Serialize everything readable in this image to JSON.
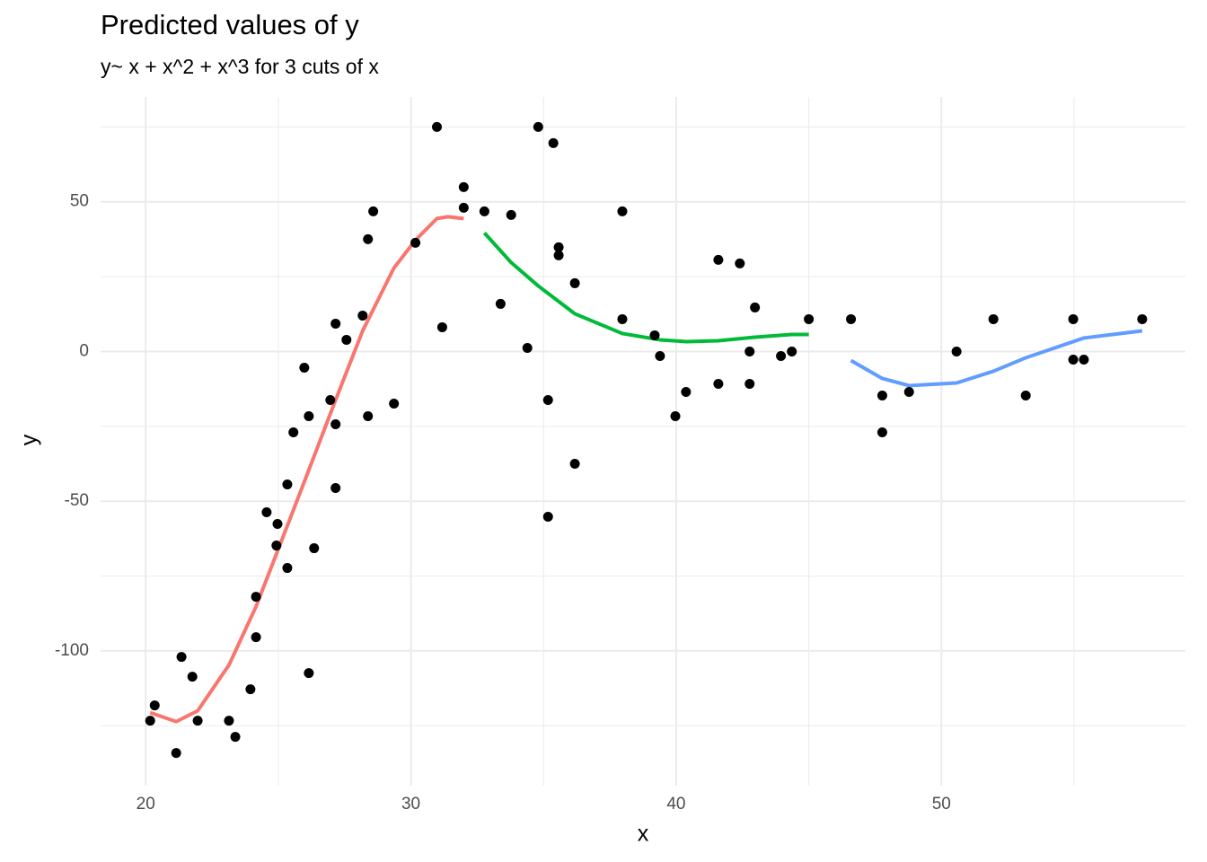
{
  "chart_data": {
    "type": "scatter",
    "title": "Predicted values of y",
    "subtitle": "y~ x + x^2 + x^3 for 3 cuts of x",
    "x_label": "x",
    "y_label": "y",
    "xlim": [
      18.3,
      59.2
    ],
    "ylim": [
      -145,
      85
    ],
    "xticks": [
      20,
      30,
      40,
      50
    ],
    "yticks": [
      -100,
      -50,
      0,
      50
    ],
    "x_minor_ticks": [
      25,
      35,
      45,
      55
    ],
    "y_minor_ticks": [
      -125,
      -75,
      -25,
      25,
      75
    ],
    "grid": true,
    "points": {
      "color": "#000000",
      "x": [
        20.17,
        20.34,
        21.15,
        21.35,
        21.76,
        21.96,
        23.14,
        23.38,
        23.95,
        24.16,
        24.16,
        24.56,
        24.93,
        24.97,
        25.34,
        25.34,
        25.57,
        25.98,
        26.15,
        26.15,
        26.35,
        26.96,
        27.16,
        27.16,
        27.16,
        27.57,
        28.18,
        28.38,
        28.38,
        28.58,
        29.36,
        30.17,
        30.98,
        31.18,
        31.99,
        31.99,
        32.77,
        33.38,
        33.78,
        34.39,
        34.8,
        35.17,
        35.17,
        35.37,
        35.57,
        35.57,
        36.18,
        36.18,
        37.97,
        37.97,
        39.19,
        39.39,
        39.97,
        40.37,
        41.59,
        41.59,
        42.4,
        42.77,
        42.77,
        42.97,
        43.95,
        44.36,
        45,
        46.59,
        47.77,
        47.77,
        48.78,
        50.57,
        51.96,
        53.18,
        54.97,
        54.97,
        55.37,
        57.57
      ],
      "values": [
        -123.3,
        -118.2,
        -134.1,
        -102,
        -108.6,
        -123.3,
        -123.3,
        -128.7,
        -112.8,
        -81.9,
        -95.4,
        -53.7,
        -64.8,
        -57.6,
        -44.4,
        -72.3,
        -27,
        -5.4,
        -21.6,
        -107.4,
        -65.7,
        -16.2,
        9.3,
        -24.3,
        -45.6,
        3.9,
        12,
        37.5,
        -21.6,
        46.8,
        -17.4,
        36.3,
        75,
        8.1,
        54.9,
        48,
        46.8,
        15.9,
        45.6,
        1.2,
        75,
        -16.2,
        -55.2,
        69.6,
        34.8,
        32.1,
        22.8,
        -37.5,
        46.8,
        10.8,
        5.4,
        -1.5,
        -21.6,
        -13.5,
        30.6,
        -10.8,
        29.4,
        0,
        -10.8,
        14.7,
        -1.5,
        0,
        10.8,
        10.8,
        -14.7,
        -27,
        -13.5,
        0,
        10.8,
        -14.7,
        10.8,
        -2.7,
        -2.7,
        10.8
      ]
    },
    "series": [
      {
        "color": "#F8766D",
        "x": [
          20.17,
          21.15,
          21.96,
          23.14,
          24.16,
          25.17,
          26.15,
          27.16,
          28.18,
          29.36,
          30.17,
          30.98,
          31.39,
          31.99
        ],
        "values": [
          -120.6,
          -123.6,
          -120,
          -104.7,
          -85.2,
          -62.1,
          -39.6,
          -16.2,
          6.9,
          27.9,
          37.2,
          44.4,
          45,
          44.4
        ]
      },
      {
        "color": "#00BA38",
        "x": [
          32.77,
          33.78,
          34.8,
          36.18,
          37.97,
          39.39,
          40.37,
          41.59,
          42.97,
          44.36,
          45
        ],
        "values": [
          39.6,
          29.7,
          21.9,
          12.6,
          6,
          3.9,
          3.3,
          3.6,
          4.8,
          5.7,
          5.7
        ]
      },
      {
        "color": "#619CFF",
        "x": [
          46.59,
          47.77,
          48.78,
          50.57,
          51.96,
          53.18,
          55.37,
          57.57
        ],
        "values": [
          -3,
          -9,
          -11.4,
          -10.5,
          -6.6,
          -2.1,
          4.5,
          6.9
        ]
      }
    ]
  }
}
